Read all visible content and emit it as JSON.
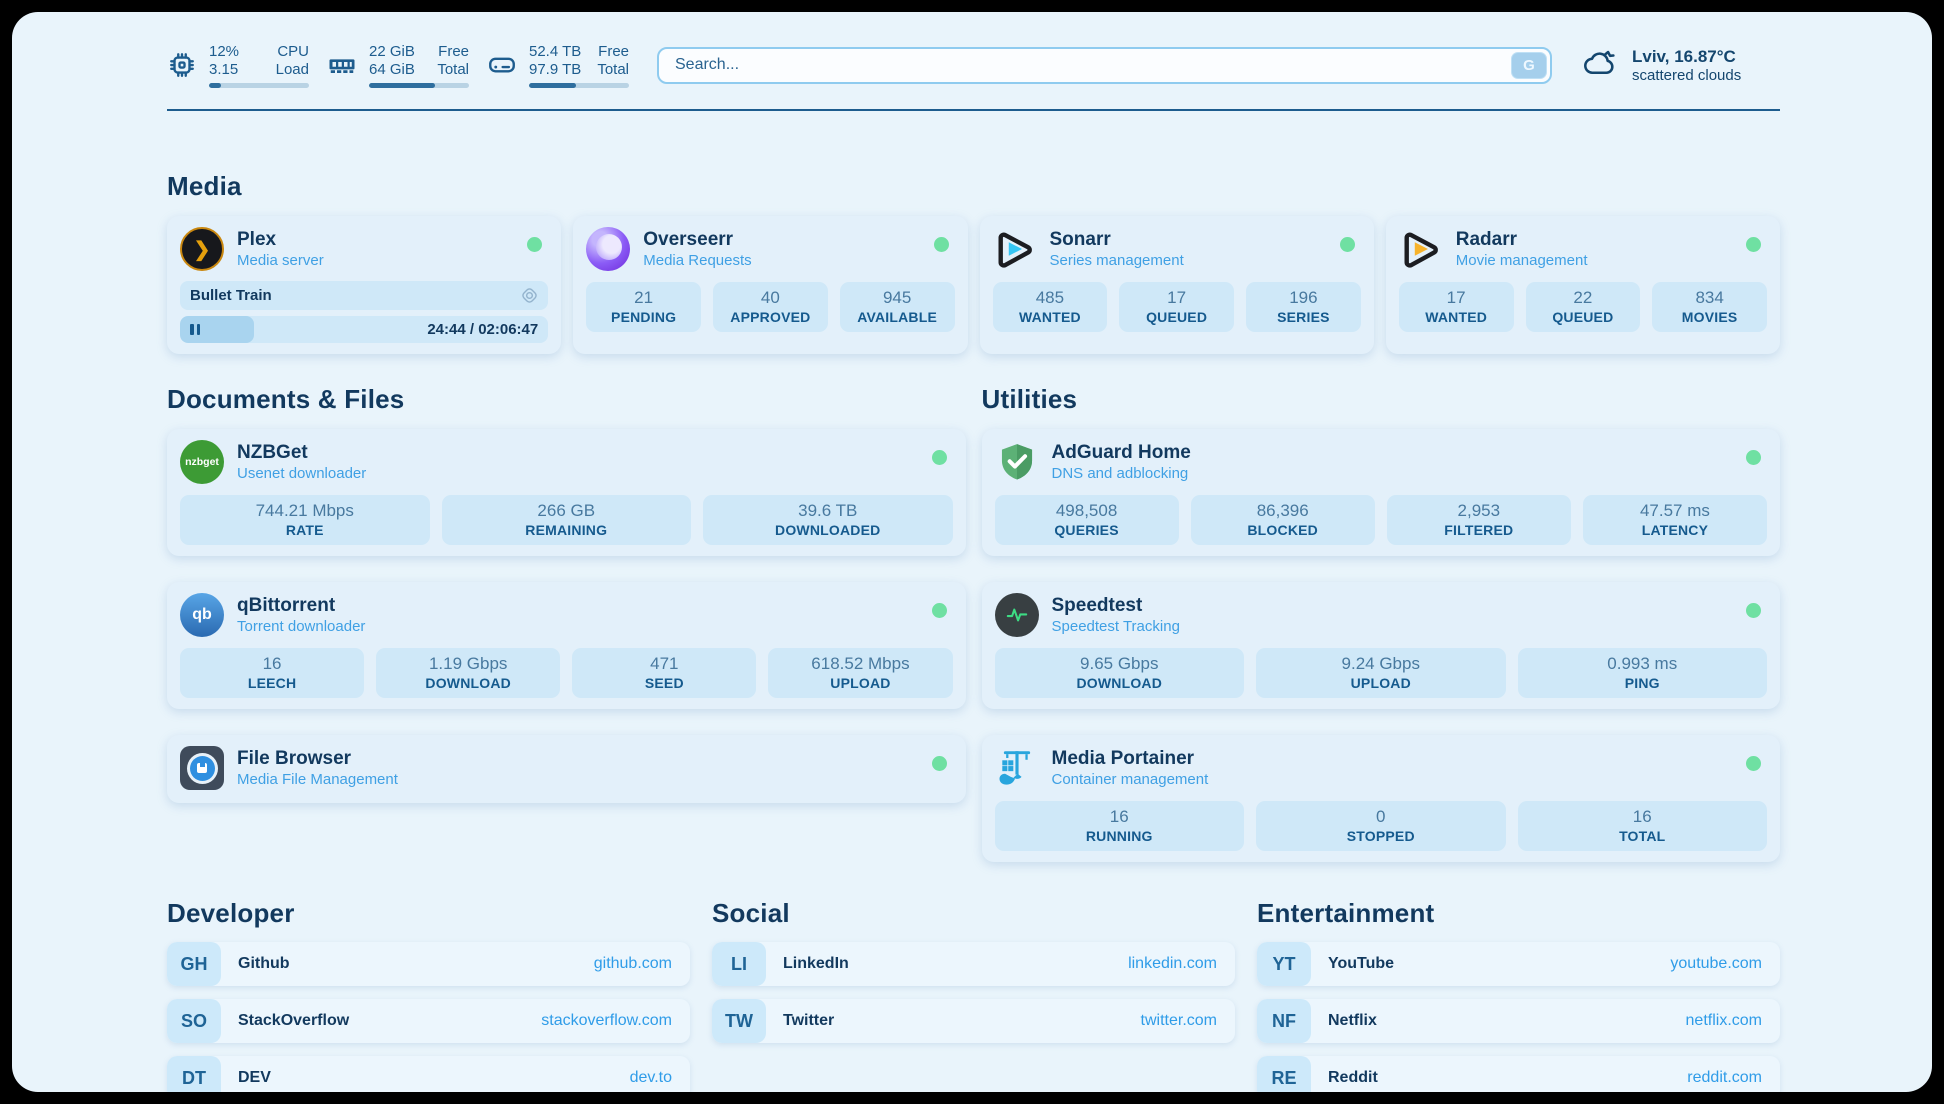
{
  "header": {
    "metrics": [
      {
        "icon": "cpu-icon",
        "value_top": "12%",
        "value_bottom": "3.15",
        "label_top": "CPU",
        "label_bottom": "Load",
        "progress_pct": 12
      },
      {
        "icon": "memory-icon",
        "value_top": "22 GiB",
        "value_bottom": "64 GiB",
        "label_top": "Free",
        "label_bottom": "Total",
        "progress_pct": 66
      },
      {
        "icon": "disk-icon",
        "value_top": "52.4 TB",
        "value_bottom": "97.9 TB",
        "label_top": "Free",
        "label_bottom": "Total",
        "progress_pct": 47
      }
    ],
    "search": {
      "placeholder": "Search...",
      "button_label": "G"
    },
    "weather": {
      "icon": "cloud-icon",
      "summary": "Lviv, 16.87°C",
      "condition": "scattered clouds"
    }
  },
  "sections": {
    "media": {
      "title": "Media",
      "apps": {
        "plex": {
          "icon": "plex-icon",
          "name": "Plex",
          "description": "Media server",
          "status": "online",
          "now_playing": "Bullet Train",
          "time_display": "24:44 / 02:06:47",
          "progress_pct": 20
        },
        "overseerr": {
          "icon": "overseerr-icon",
          "name": "Overseerr",
          "description": "Media Requests",
          "status": "online",
          "stats": [
            {
              "value": "21",
              "label": "PENDING"
            },
            {
              "value": "40",
              "label": "APPROVED"
            },
            {
              "value": "945",
              "label": "AVAILABLE"
            }
          ]
        },
        "sonarr": {
          "icon": "sonarr-icon",
          "name": "Sonarr",
          "description": "Series management",
          "status": "online",
          "stats": [
            {
              "value": "485",
              "label": "WANTED"
            },
            {
              "value": "17",
              "label": "QUEUED"
            },
            {
              "value": "196",
              "label": "SERIES"
            }
          ]
        },
        "radarr": {
          "icon": "radarr-icon",
          "name": "Radarr",
          "description": "Movie management",
          "status": "online",
          "stats": [
            {
              "value": "17",
              "label": "WANTED"
            },
            {
              "value": "22",
              "label": "QUEUED"
            },
            {
              "value": "834",
              "label": "MOVIES"
            }
          ]
        }
      }
    },
    "documents": {
      "title": "Documents & Files",
      "apps": {
        "nzbget": {
          "icon": "nzbget-icon",
          "name": "NZBGet",
          "description": "Usenet downloader",
          "status": "online",
          "stats": [
            {
              "value": "744.21 Mbps",
              "label": "RATE"
            },
            {
              "value": "266 GB",
              "label": "REMAINING"
            },
            {
              "value": "39.6 TB",
              "label": "DOWNLOADED"
            }
          ]
        },
        "qbittorrent": {
          "icon": "qbittorrent-icon",
          "name": "qBittorrent",
          "description": "Torrent downloader",
          "status": "online",
          "stats": [
            {
              "value": "16",
              "label": "LEECH"
            },
            {
              "value": "1.19 Gbps",
              "label": "DOWNLOAD"
            },
            {
              "value": "471",
              "label": "SEED"
            },
            {
              "value": "618.52 Mbps",
              "label": "UPLOAD"
            }
          ]
        },
        "filebrowser": {
          "icon": "filebrowser-icon",
          "name": "File Browser",
          "description": "Media File Management",
          "status": "online"
        }
      }
    },
    "utilities": {
      "title": "Utilities",
      "apps": {
        "adguard": {
          "icon": "adguard-icon",
          "name": "AdGuard Home",
          "description": "DNS and adblocking",
          "status": "online",
          "stats": [
            {
              "value": "498,508",
              "label": "QUERIES"
            },
            {
              "value": "86,396",
              "label": "BLOCKED"
            },
            {
              "value": "2,953",
              "label": "FILTERED"
            },
            {
              "value": "47.57 ms",
              "label": "LATENCY"
            }
          ]
        },
        "speedtest": {
          "icon": "speedtest-icon",
          "name": "Speedtest",
          "description": "Speedtest Tracking",
          "status": "online",
          "stats": [
            {
              "value": "9.65 Gbps",
              "label": "DOWNLOAD"
            },
            {
              "value": "9.24 Gbps",
              "label": "UPLOAD"
            },
            {
              "value": "0.993 ms",
              "label": "PING"
            }
          ]
        },
        "portainer": {
          "icon": "portainer-icon",
          "name": "Media Portainer",
          "description": "Container management",
          "status": "online",
          "stats": [
            {
              "value": "16",
              "label": "RUNNING"
            },
            {
              "value": "0",
              "label": "STOPPED"
            },
            {
              "value": "16",
              "label": "TOTAL"
            }
          ]
        }
      }
    },
    "bookmarks": [
      {
        "title": "Developer",
        "links": [
          {
            "abbr": "GH",
            "name": "Github",
            "url": "github.com"
          },
          {
            "abbr": "SO",
            "name": "StackOverflow",
            "url": "stackoverflow.com"
          },
          {
            "abbr": "DT",
            "name": "DEV",
            "url": "dev.to"
          }
        ]
      },
      {
        "title": "Social",
        "links": [
          {
            "abbr": "LI",
            "name": "LinkedIn",
            "url": "linkedin.com"
          },
          {
            "abbr": "TW",
            "name": "Twitter",
            "url": "twitter.com"
          }
        ]
      },
      {
        "title": "Entertainment",
        "links": [
          {
            "abbr": "YT",
            "name": "YouTube",
            "url": "youtube.com"
          },
          {
            "abbr": "NF",
            "name": "Netflix",
            "url": "netflix.com"
          },
          {
            "abbr": "RE",
            "name": "Reddit",
            "url": "reddit.com"
          }
        ]
      }
    ]
  },
  "colors": {
    "page_bg": "#e9f4fb",
    "card_bg": "#e3f0fa",
    "stat_bg": "#cfe8f8",
    "accent_navy": "#12395e",
    "accent_blue": "#3fa0e4",
    "status_online": "#6fe0a2"
  }
}
